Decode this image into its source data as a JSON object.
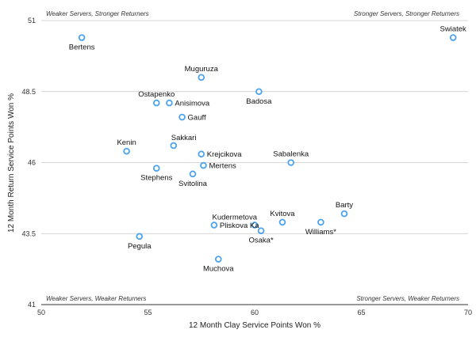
{
  "chart_data": {
    "type": "scatter",
    "xlabel": "12 Month Clay Service Points Won %",
    "ylabel": "12 Month Return Service Points Won %",
    "xlim": [
      50,
      70
    ],
    "ylim": [
      41,
      51
    ],
    "xticks": [
      50,
      55,
      60,
      65,
      70
    ],
    "yticks": [
      41,
      43.5,
      46,
      48.5,
      51
    ],
    "grid": "horizontal",
    "marker_color": "#4aa3f0",
    "quadrant_labels": {
      "top_left": "Weaker Servers, Stronger Returners",
      "top_right": "Stronger Servers, Stronger Returners",
      "bottom_left": "Weaker Servers, Weaker Returners",
      "bottom_right": "Stronger Servers, Weaker Returners"
    },
    "points": [
      {
        "label": "Bertens",
        "x": 51.9,
        "y": 50.4,
        "anchor": "below"
      },
      {
        "label": "Swiatek",
        "x": 69.3,
        "y": 50.4,
        "anchor": "above"
      },
      {
        "label": "Muguruza",
        "x": 57.5,
        "y": 49.0,
        "anchor": "above"
      },
      {
        "label": "Badosa",
        "x": 60.2,
        "y": 48.5,
        "anchor": "below"
      },
      {
        "label": "Ostapenko",
        "x": 55.4,
        "y": 48.1,
        "anchor": "above"
      },
      {
        "label": "Anisimova",
        "x": 56.0,
        "y": 48.1,
        "anchor": "right"
      },
      {
        "label": "Gauff",
        "x": 56.6,
        "y": 47.6,
        "anchor": "right"
      },
      {
        "label": "Kenin",
        "x": 54.0,
        "y": 46.4,
        "anchor": "above"
      },
      {
        "label": "Sakkari",
        "x": 56.2,
        "y": 46.6,
        "anchor": "above-right"
      },
      {
        "label": "Krejcikova",
        "x": 57.5,
        "y": 46.3,
        "anchor": "right"
      },
      {
        "label": "Sabalenka",
        "x": 61.7,
        "y": 46.0,
        "anchor": "above"
      },
      {
        "label": "Mertens",
        "x": 57.6,
        "y": 45.9,
        "anchor": "right"
      },
      {
        "label": "Stephens",
        "x": 55.4,
        "y": 45.8,
        "anchor": "below"
      },
      {
        "label": "Svitolina",
        "x": 57.1,
        "y": 45.6,
        "anchor": "below"
      },
      {
        "label": "Barty",
        "x": 64.2,
        "y": 44.2,
        "anchor": "above"
      },
      {
        "label": "Kvitova",
        "x": 61.3,
        "y": 43.9,
        "anchor": "above"
      },
      {
        "label": "Williams*",
        "x": 63.1,
        "y": 43.9,
        "anchor": "below"
      },
      {
        "label": "Kudermetova",
        "x": 60.0,
        "y": 43.8,
        "anchor": "above-left"
      },
      {
        "label": "Pliskova Ka",
        "x": 58.1,
        "y": 43.8,
        "anchor": "right"
      },
      {
        "label": "Osaka*",
        "x": 60.3,
        "y": 43.6,
        "anchor": "below"
      },
      {
        "label": "Pegula",
        "x": 54.6,
        "y": 43.4,
        "anchor": "below"
      },
      {
        "label": "Muchova",
        "x": 58.3,
        "y": 42.6,
        "anchor": "below"
      }
    ]
  }
}
